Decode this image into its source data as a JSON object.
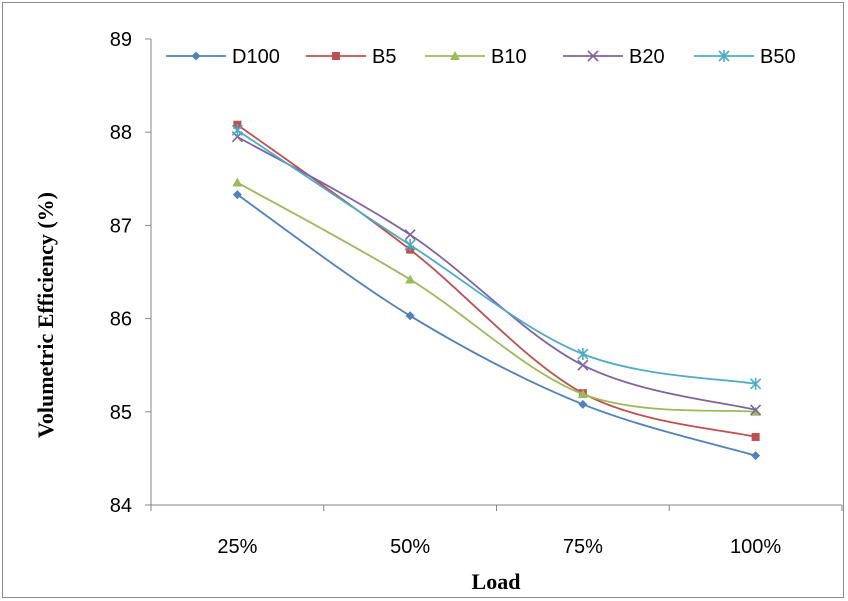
{
  "chart_data": {
    "type": "line",
    "title": "",
    "xlabel": "Load",
    "ylabel": "Volumetric  Efficiency (%)",
    "categories": [
      "25%",
      "50%",
      "75%",
      "100%"
    ],
    "ylim": [
      84,
      89
    ],
    "yticks": [
      "84",
      "85",
      "86",
      "87",
      "88",
      "89"
    ],
    "grid": false,
    "legend_position": "top",
    "series": [
      {
        "name": "D100",
        "values": [
          87.33,
          86.03,
          85.08,
          84.53
        ],
        "color": "#4F81BD",
        "marker": "diamond"
      },
      {
        "name": "B5",
        "values": [
          88.08,
          86.74,
          85.2,
          84.73
        ],
        "color": "#C0504D",
        "marker": "square"
      },
      {
        "name": "B10",
        "values": [
          87.46,
          86.42,
          85.19,
          85.0
        ],
        "color": "#9BBB59",
        "marker": "triangle"
      },
      {
        "name": "B20",
        "values": [
          87.95,
          86.9,
          85.5,
          85.02
        ],
        "color": "#8064A2",
        "marker": "x"
      },
      {
        "name": "B50",
        "values": [
          88.02,
          86.79,
          85.62,
          85.3
        ],
        "color": "#4BACC6",
        "marker": "star"
      }
    ]
  }
}
